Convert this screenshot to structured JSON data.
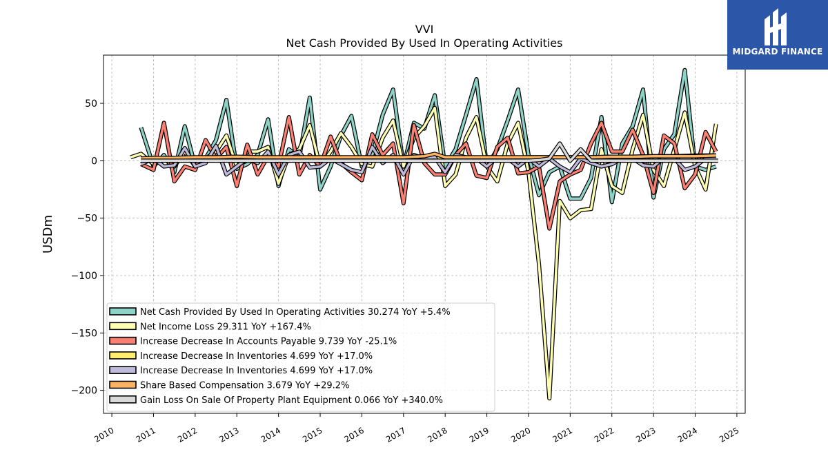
{
  "brand": {
    "name": "MIDGARD FINANCE",
    "bg_color": "#2c56a8"
  },
  "chart_data": {
    "type": "line",
    "title": "VVI",
    "subtitle": "Net Cash Provided By Used In Operating Activities",
    "ylabel": "USDm",
    "xlabel": "",
    "xlim": [
      2009.8,
      2025.2
    ],
    "ylim": [
      -220,
      92
    ],
    "x_ticks": [
      "2010",
      "2011",
      "2012",
      "2013",
      "2014",
      "2015",
      "2016",
      "2017",
      "2018",
      "2019",
      "2020",
      "2021",
      "2022",
      "2023",
      "2024",
      "2025"
    ],
    "y_ticks": [
      50,
      0,
      -50,
      -100,
      -150,
      -200
    ],
    "y_tick_labels": [
      "50",
      "0",
      "−50",
      "−100",
      "−150",
      "−200"
    ],
    "grid": true,
    "legend_position": "lower-left",
    "series": [
      {
        "name": "Net Cash Provided By Used In Operating Activities",
        "legend": "Net Cash Provided By Used In Operating Activities  30.274 YoY +5.4%",
        "color": "#8dd3c7",
        "x": [
          2010.7,
          2011.0,
          2011.25,
          2011.5,
          2011.75,
          2012.0,
          2012.25,
          2012.5,
          2012.75,
          2013.0,
          2013.25,
          2013.5,
          2013.75,
          2014.0,
          2014.25,
          2014.5,
          2014.75,
          2015.0,
          2015.25,
          2015.5,
          2015.75,
          2016.0,
          2016.25,
          2016.5,
          2016.75,
          2017.0,
          2017.25,
          2017.5,
          2017.75,
          2018.0,
          2018.25,
          2018.5,
          2018.75,
          2019.0,
          2019.25,
          2019.5,
          2019.75,
          2020.0,
          2020.25,
          2020.5,
          2020.75,
          2021.0,
          2021.25,
          2021.5,
          2021.75,
          2022.0,
          2022.25,
          2022.5,
          2022.75,
          2023.0,
          2023.25,
          2023.5,
          2023.75,
          2024.0,
          2024.25,
          2024.5
        ],
        "y": [
          29,
          -5,
          5,
          -10,
          30,
          -5,
          2,
          18,
          53,
          -7,
          -3,
          5,
          36,
          -22,
          10,
          3,
          55,
          -25,
          -5,
          22,
          39,
          -5,
          5,
          40,
          62,
          -5,
          33,
          28,
          57,
          -5,
          10,
          40,
          71,
          -5,
          10,
          35,
          62,
          5,
          -30,
          -10,
          -5,
          -33,
          -33,
          -15,
          38,
          -36,
          15,
          30,
          62,
          -32,
          10,
          23,
          79,
          -5,
          -8,
          -5
        ]
      },
      {
        "name": "Net Income Loss",
        "legend": "Net Income Loss  29.311 YoY +167.4%",
        "color": "#ffffb3",
        "x": [
          2010.45,
          2010.7,
          2011.0,
          2011.25,
          2011.5,
          2011.75,
          2012.0,
          2012.25,
          2012.5,
          2012.75,
          2013.0,
          2013.25,
          2013.5,
          2013.75,
          2014.0,
          2014.25,
          2014.5,
          2014.75,
          2015.0,
          2015.25,
          2015.5,
          2015.75,
          2016.0,
          2016.25,
          2016.5,
          2016.75,
          2017.0,
          2017.25,
          2017.5,
          2017.75,
          2018.0,
          2018.25,
          2018.5,
          2018.75,
          2019.0,
          2019.25,
          2019.5,
          2019.75,
          2020.0,
          2020.25,
          2020.5,
          2020.75,
          2021.0,
          2021.25,
          2021.5,
          2021.75,
          2022.0,
          2022.25,
          2022.5,
          2022.75,
          2023.0,
          2023.25,
          2023.5,
          2023.75,
          2024.0,
          2024.25,
          2024.5
        ],
        "y": [
          3,
          6,
          -3,
          2,
          -5,
          8,
          -5,
          2,
          8,
          22,
          -5,
          8,
          8,
          12,
          -20,
          5,
          10,
          31,
          -5,
          8,
          24,
          12,
          -3,
          -5,
          20,
          35,
          -5,
          20,
          30,
          46,
          -22,
          -12,
          20,
          38,
          -5,
          -18,
          15,
          33,
          -10,
          -90,
          -207,
          -35,
          -50,
          -43,
          -42,
          10,
          -22,
          -28,
          10,
          40,
          -8,
          -22,
          10,
          42,
          -5,
          -25,
          32
        ]
      },
      {
        "name": "Increase Decrease In Accounts Payable",
        "legend": "Increase Decrease In Accounts Payable  9.739 YoY -25.1%",
        "color": "#fb8072",
        "x": [
          2010.7,
          2011.0,
          2011.25,
          2011.5,
          2011.75,
          2012.0,
          2012.25,
          2012.5,
          2012.75,
          2013.0,
          2013.25,
          2013.5,
          2013.75,
          2014.0,
          2014.25,
          2014.5,
          2014.75,
          2015.0,
          2015.25,
          2015.5,
          2015.75,
          2016.0,
          2016.25,
          2016.5,
          2016.75,
          2017.0,
          2017.25,
          2017.5,
          2017.75,
          2018.0,
          2018.25,
          2018.5,
          2018.75,
          2019.0,
          2019.25,
          2019.5,
          2019.75,
          2020.0,
          2020.25,
          2020.5,
          2020.75,
          2021.0,
          2021.25,
          2021.5,
          2021.75,
          2022.0,
          2022.25,
          2022.5,
          2022.75,
          2023.0,
          2023.25,
          2023.5,
          2023.75,
          2024.0,
          2024.25,
          2024.5
        ],
        "y": [
          -3,
          -8,
          33,
          -18,
          -5,
          -8,
          18,
          2,
          12,
          -22,
          14,
          -12,
          4,
          -5,
          38,
          -12,
          5,
          -5,
          21,
          -2,
          -10,
          -17,
          23,
          5,
          15,
          -37,
          31,
          -2,
          -12,
          -12,
          5,
          15,
          -13,
          -15,
          12,
          20,
          -11,
          -10,
          -5,
          -59,
          -18,
          -12,
          -8,
          15,
          33,
          8,
          8,
          27,
          5,
          -28,
          22,
          15,
          -24,
          -12,
          25,
          8
        ]
      },
      {
        "name": "Increase Decrease In Inventories",
        "legend": "Increase Decrease In Inventories  4.699 YoY +17.0%",
        "color": "#ffed6f",
        "x": [
          2010.7,
          2011.0,
          2011.5,
          2012.0,
          2012.5,
          2013.0,
          2013.5,
          2014.0,
          2014.5,
          2015.0,
          2015.5,
          2016.0,
          2016.5,
          2017.0,
          2017.5,
          2018.0,
          2018.5,
          2019.0,
          2019.5,
          2020.0,
          2020.5,
          2021.0,
          2021.5,
          2022.0,
          2022.5,
          2023.0,
          2023.5,
          2024.0,
          2024.5
        ],
        "y": [
          1,
          1.5,
          1,
          1.5,
          1,
          2,
          1.5,
          2,
          1.5,
          2,
          1.5,
          2,
          2,
          2.5,
          2,
          2.5,
          2,
          3,
          2.5,
          3,
          3,
          3,
          3,
          3.5,
          3.5,
          4,
          4,
          4.5,
          4.7
        ]
      },
      {
        "name": "Increase Decrease In Inventories",
        "legend": "Increase Decrease In Inventories  4.699 YoY +17.0%",
        "color": "#bebada",
        "x": [
          2010.7,
          2011.0,
          2011.25,
          2011.5,
          2011.75,
          2012.0,
          2012.25,
          2012.5,
          2012.75,
          2013.0,
          2013.25,
          2013.5,
          2013.75,
          2014.0,
          2014.25,
          2014.5,
          2014.75,
          2015.0,
          2015.25,
          2015.5,
          2015.75,
          2016.0,
          2016.25,
          2016.5,
          2016.75,
          2017.0,
          2017.25,
          2017.5,
          2017.75,
          2018.0,
          2018.25,
          2018.5,
          2018.75,
          2019.0,
          2019.25,
          2019.5,
          2019.75,
          2020.0,
          2020.25,
          2020.5,
          2020.75,
          2021.0,
          2021.25,
          2021.5,
          2021.75,
          2022.0,
          2022.25,
          2022.5,
          2022.75,
          2023.0,
          2023.25,
          2023.5,
          2023.75,
          2024.0,
          2024.25,
          2024.5
        ],
        "y": [
          -3,
          2,
          -5,
          -4,
          11,
          -5,
          -2,
          13,
          -12,
          -5,
          2,
          -2,
          8,
          -12,
          5,
          8,
          -6,
          -5,
          2,
          -3,
          -8,
          -10,
          12,
          -2,
          5,
          -12,
          5,
          2,
          3,
          -10,
          5,
          3,
          2,
          -5,
          3,
          2,
          -5,
          2,
          -5,
          2,
          -5,
          -10,
          2,
          -2,
          -5,
          -3,
          2,
          2,
          -4,
          -5,
          3,
          2,
          -8,
          -5,
          2,
          2
        ]
      },
      {
        "name": "Share Based Compensation",
        "legend": "Share Based Compensation  3.679 YoY +29.2%",
        "color": "#fdb462",
        "x": [
          2010.7,
          2011.0,
          2011.5,
          2012.0,
          2012.5,
          2013.0,
          2013.5,
          2014.0,
          2014.5,
          2015.0,
          2015.5,
          2016.0,
          2016.5,
          2017.0,
          2017.5,
          2017.75,
          2018.0,
          2018.5,
          2019.0,
          2019.5,
          2020.0,
          2020.5,
          2021.0,
          2021.5,
          2022.0,
          2022.5,
          2023.0,
          2023.5,
          2024.0,
          2024.5
        ],
        "y": [
          2,
          2.5,
          2.5,
          3,
          3,
          3.5,
          3,
          3,
          3,
          3,
          3,
          3,
          3,
          3,
          4,
          6,
          3,
          3,
          3,
          3,
          3,
          3,
          3,
          3,
          3.5,
          3.5,
          4,
          4,
          4,
          4.5
        ]
      },
      {
        "name": "Gain Loss On Sale Of Property Plant Equipment",
        "legend": "Gain Loss On Sale Of Property Plant Equipment  0.066 YoY +340.0%",
        "color": "#d9d9d9",
        "x": [
          2010.7,
          2011.0,
          2012.0,
          2013.0,
          2014.0,
          2015.0,
          2016.0,
          2017.0,
          2018.0,
          2019.0,
          2020.0,
          2020.25,
          2020.5,
          2020.75,
          2021.0,
          2021.25,
          2021.5,
          2022.0,
          2023.0,
          2024.0,
          2024.55
        ],
        "y": [
          0,
          0,
          0,
          0,
          0,
          0,
          0,
          0,
          0,
          0,
          0,
          0.5,
          2,
          15,
          0,
          10,
          0,
          0,
          0,
          0,
          0.1
        ]
      }
    ]
  }
}
